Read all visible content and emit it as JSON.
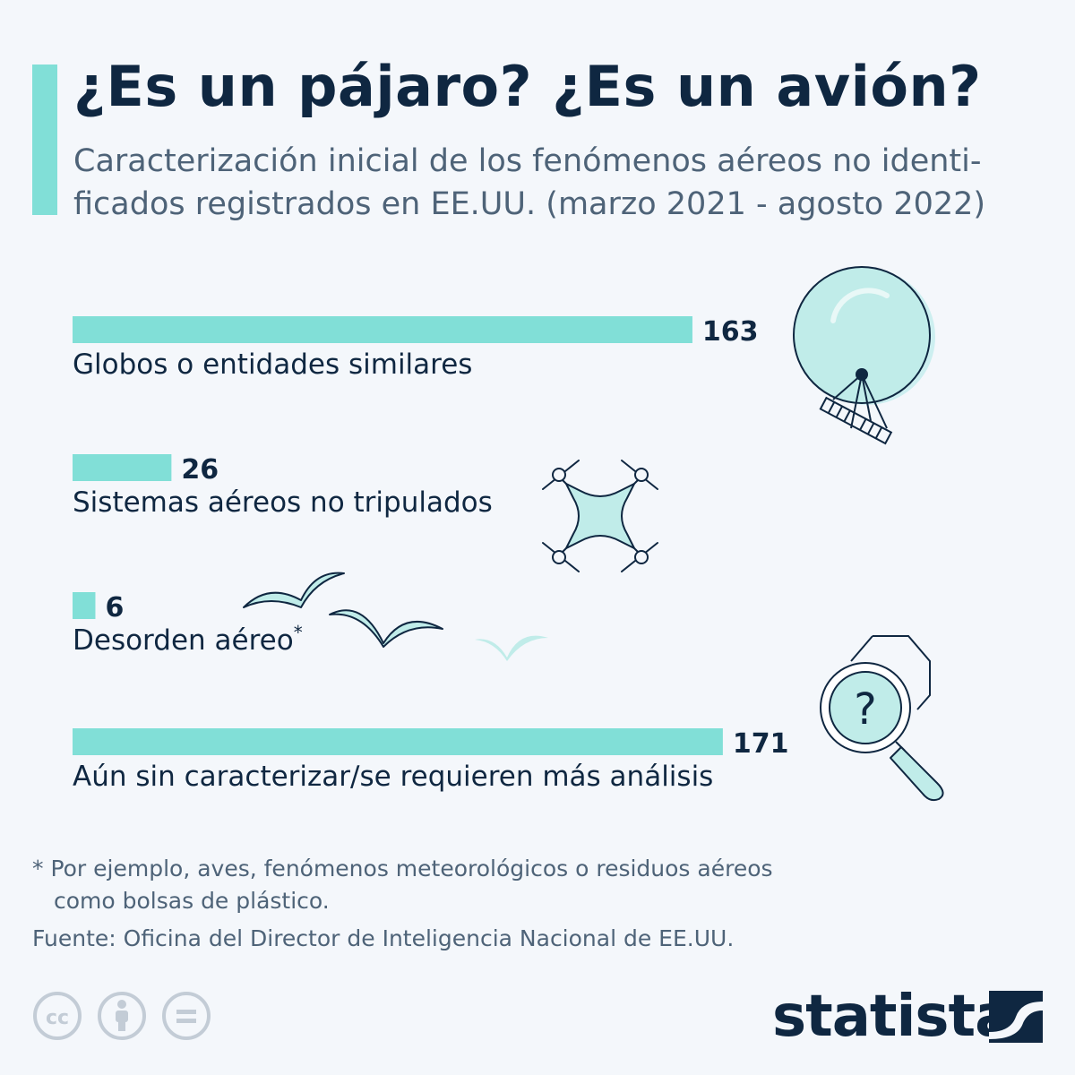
{
  "header": {
    "title": "¿Es un pájaro? ¿Es un avión?",
    "subtitle_line1": "Caracterización inicial de los fenómenos aéreos no identi-",
    "subtitle_line2": "ficados registrados en EE.UU. (marzo 2021 - agosto 2022)"
  },
  "chart_data": {
    "type": "bar",
    "orientation": "horizontal",
    "categories": [
      "Globos o entidades similares",
      "Sistemas aéreos no tripulados",
      "Desorden aéreo",
      "Aún sin caracterizar/se requieren más análisis"
    ],
    "category_markers": [
      "",
      "",
      "*",
      ""
    ],
    "values": [
      163,
      26,
      6,
      171
    ],
    "value_labels": [
      "163",
      "26",
      "6",
      "171"
    ],
    "bar_color": "#81dfd7",
    "grid": false,
    "icons": [
      "balloon-icon",
      "drone-icon",
      "birds-icon",
      "magnifier-question-icon"
    ]
  },
  "footer": {
    "note_line1": "* Por ejemplo, aves, fenómenos meteorológicos o residuos aéreos",
    "note_line2": "como bolsas de plástico.",
    "source": "Fuente: Oficina del Director de Inteligencia Nacional de EE.UU.",
    "license_icons": [
      "cc-icon",
      "attribution-icon",
      "no-derivatives-icon"
    ],
    "brand": "statista"
  },
  "colors": {
    "accent": "#81dfd7",
    "text_dark": "#0f2741",
    "text_muted": "#4e6378",
    "background": "#f4f7fb"
  }
}
